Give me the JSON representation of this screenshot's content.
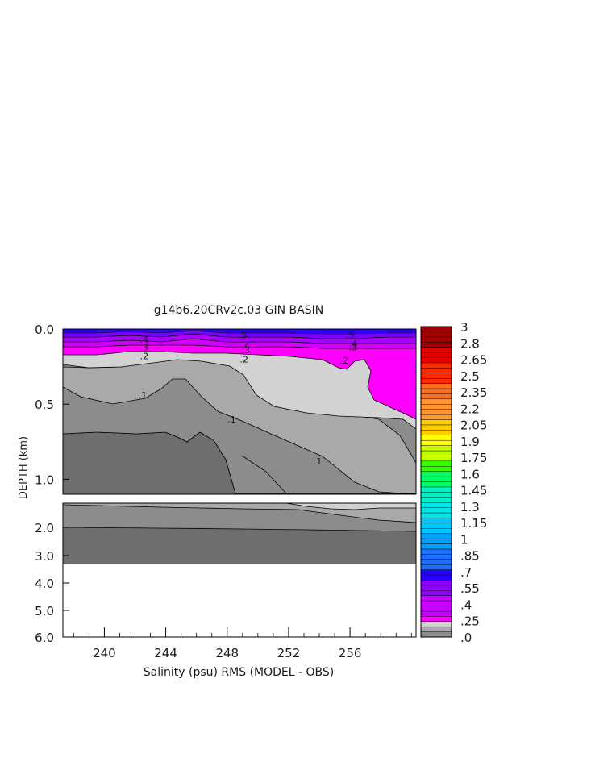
{
  "chart_data": {
    "type": "heatmap",
    "title": "g14b6.20CRv2c.03 GIN BASIN",
    "xlabel": "Salinity (psu) RMS (MODEL - OBS)",
    "ylabel": "DEPTH (km)",
    "x_ticks": [
      240,
      244,
      248,
      252,
      256
    ],
    "x_tick_labels": [
      "240",
      "244",
      "248",
      "252",
      "256"
    ],
    "xlim": [
      237.3,
      260.3
    ],
    "upper_panel": {
      "ylim": [
        0.0,
        1.1
      ],
      "y_ticks": [
        0.0,
        0.5,
        1.0
      ],
      "y_tick_labels": [
        "0.0",
        "0.5",
        "1.0"
      ]
    },
    "lower_panel": {
      "ylim": [
        1.1,
        6.0
      ],
      "y_ticks": [
        2.0,
        3.0,
        4.0,
        5.0,
        6.0
      ],
      "y_tick_labels": [
        "2.0",
        "3.0",
        "4.0",
        "5.0",
        "6.0"
      ]
    },
    "contour_labels": [
      {
        "text": ".5",
        "x": 249.0,
        "y": 0.04
      },
      {
        "text": ".5",
        "x": 256.0,
        "y": 0.04
      },
      {
        "text": ".4",
        "x": 242.6,
        "y": 0.07
      },
      {
        "text": ".4",
        "x": 249.2,
        "y": 0.11
      },
      {
        "text": ".4",
        "x": 256.2,
        "y": 0.1
      },
      {
        "text": ".3",
        "x": 242.6,
        "y": 0.12
      },
      {
        "text": ".3",
        "x": 249.2,
        "y": 0.14
      },
      {
        "text": ".3",
        "x": 256.2,
        "y": 0.12
      },
      {
        "text": ".2",
        "x": 242.6,
        "y": 0.18
      },
      {
        "text": ".2",
        "x": 249.1,
        "y": 0.2
      },
      {
        "text": ".2",
        "x": 255.6,
        "y": 0.21
      },
      {
        "text": ".1",
        "x": 242.5,
        "y": 0.44
      },
      {
        "text": ".1",
        "x": 248.3,
        "y": 0.6
      },
      {
        "text": ".1",
        "x": 253.9,
        "y": 0.88
      }
    ],
    "colorbar": {
      "tick_labels": [
        "3",
        "2.8",
        "2.65",
        "2.5",
        "2.35",
        "2.2",
        "2.05",
        "1.9",
        "1.75",
        "1.6",
        "1.45",
        "1.3",
        "1.15",
        "1",
        ".85",
        ".7",
        ".55",
        ".4",
        ".25",
        ".0"
      ],
      "top_value": 3.0,
      "bottom_value": 0.0
    },
    "colors": {
      "level_0": "#6e6e6e",
      "level_1": "#8c8c8c",
      "level_2": "#a9a9a9",
      "level_3": "#d2d2d2",
      "magenta": "#ff00ff",
      "violet": "#b400ff",
      "purple": "#7d00ff",
      "blue": "#2a00ff",
      "no_data": "#ffffff"
    }
  }
}
